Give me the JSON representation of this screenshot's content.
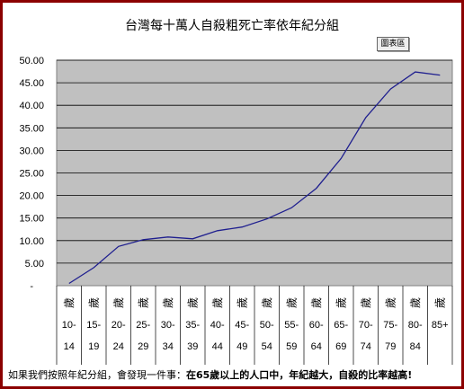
{
  "caption": {
    "prefix": "如果我們按照年紀分組，會發現一件事：",
    "highlight": "在65歲以上的人口中，年紀越大，自殺的比率越高!"
  },
  "legend_button_label": "圖表區",
  "chart_data": {
    "type": "line",
    "title": "台灣每十萬人自殺粗死亡率依年紀分組",
    "xlabel": "",
    "ylabel": "",
    "ylim": [
      0,
      50
    ],
    "yticks": [
      "50.00",
      "45.00",
      "40.00",
      "35.00",
      "30.00",
      "25.00",
      "20.00",
      "15.00",
      "10.00",
      "5.00",
      "-"
    ],
    "grid": true,
    "age_prefix": "歲",
    "categories": [
      {
        "top": "10-",
        "bottom": "14"
      },
      {
        "top": "15-",
        "bottom": "19"
      },
      {
        "top": "20-",
        "bottom": "24"
      },
      {
        "top": "25-",
        "bottom": "29"
      },
      {
        "top": "30-",
        "bottom": "34"
      },
      {
        "top": "35-",
        "bottom": "39"
      },
      {
        "top": "40-",
        "bottom": "44"
      },
      {
        "top": "45-",
        "bottom": "49"
      },
      {
        "top": "50-",
        "bottom": "54"
      },
      {
        "top": "55-",
        "bottom": "59"
      },
      {
        "top": "60-",
        "bottom": "64"
      },
      {
        "top": "65-",
        "bottom": "69"
      },
      {
        "top": "70-",
        "bottom": "74"
      },
      {
        "top": "75-",
        "bottom": "79"
      },
      {
        "top": "80-",
        "bottom": "84"
      },
      {
        "top": "85+",
        "bottom": ""
      }
    ],
    "values": [
      0.5,
      4.0,
      8.7,
      10.2,
      10.8,
      10.4,
      12.2,
      13.0,
      14.8,
      17.3,
      21.6,
      28.2,
      37.3,
      43.6,
      47.4,
      46.7
    ],
    "colors": {
      "line": "#1f1f8f",
      "plot_bg": "#c0c0c0",
      "grid": "#000000"
    }
  }
}
